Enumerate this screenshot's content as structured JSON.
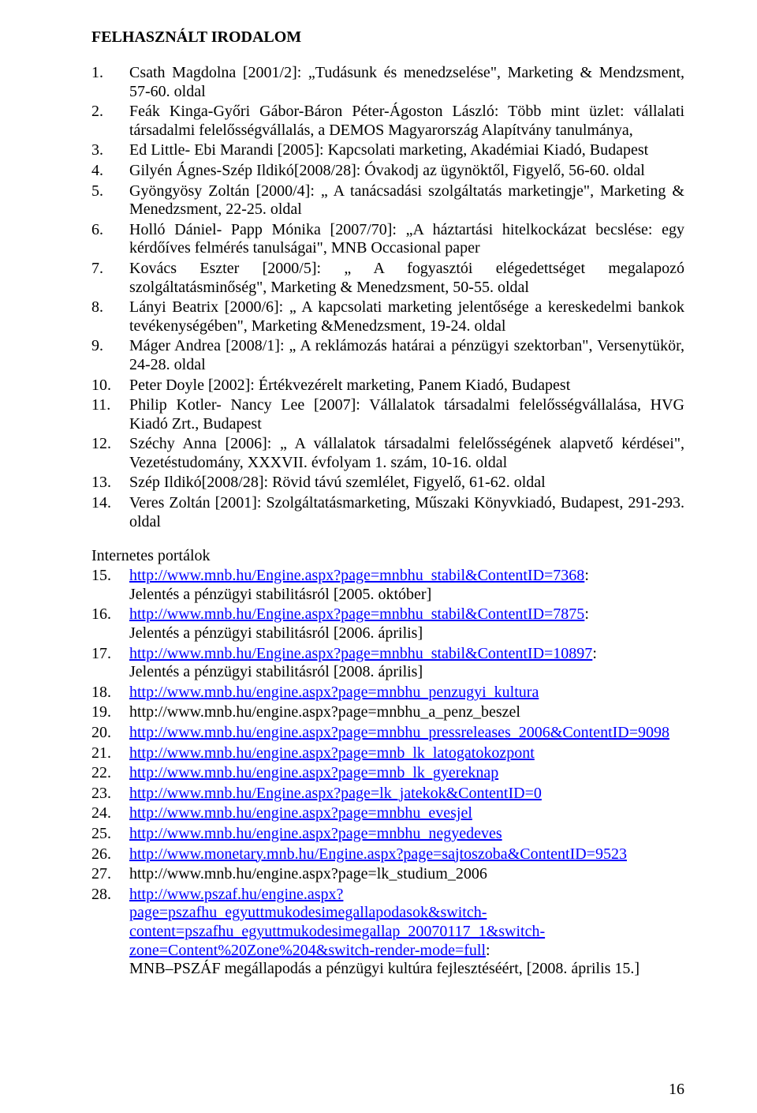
{
  "heading": "FELHASZNÁLT IRODALOM",
  "biblio": [
    {
      "n": "1.",
      "text": "Csath Magdolna [2001/2]: „Tudásunk és menedzselése\", Marketing & Mendzsment, 57-60. oldal"
    },
    {
      "n": "2.",
      "text": "Feák Kinga-Győri Gábor-Báron Péter-Ágoston László: Több mint üzlet: vállalati társadalmi felelősségvállalás, a DEMOS Magyarország Alapítvány tanulmánya,"
    },
    {
      "n": "3.",
      "text": "Ed Little- Ebi Marandi [2005]: Kapcsolati marketing, Akadémiai Kiadó, Budapest"
    },
    {
      "n": "4.",
      "text": "Gilyén Ágnes-Szép Ildikó[2008/28]: Óvakodj az ügynöktől, Figyelő, 56-60. oldal"
    },
    {
      "n": "5.",
      "text": "Gyöngyösy Zoltán [2000/4]: „ A tanácsadási szolgáltatás marketingje\", Marketing & Menedzsment, 22-25. oldal"
    },
    {
      "n": "6.",
      "text": "Holló Dániel- Papp Mónika [2007/70]: „A háztartási hitelkockázat becslése: egy kérdőíves felmérés tanulságai\",  MNB Occasional paper"
    },
    {
      "n": "7.",
      "text": "Kovács Eszter [2000/5]: „ A fogyasztói elégedettséget megalapozó szolgáltatásminőség\", Marketing & Menedzsment, 50-55. oldal"
    },
    {
      "n": "8.",
      "text": "Lányi Beatrix [2000/6]: „ A kapcsolati marketing jelentősége a kereskedelmi bankok tevékenységében\", Marketing &Menedzsment, 19-24. oldal"
    },
    {
      "n": "9.",
      "text": "Máger Andrea [2008/1]: „ A reklámozás határai a pénzügyi szektorban\", Versenytükör, 24-28. oldal"
    },
    {
      "n": "10.",
      "text": "Peter Doyle [2002]: Értékvezérelt marketing, Panem Kiadó, Budapest"
    },
    {
      "n": "11.",
      "text": "Philip Kotler- Nancy Lee [2007]: Vállalatok társadalmi felelősségvállalása, HVG Kiadó Zrt., Budapest"
    },
    {
      "n": "12.",
      "text": "Széchy Anna [2006]: „ A vállalatok társadalmi felelősségének alapvető kérdései\", Vezetéstudomány, XXXVII. évfolyam 1. szám, 10-16. oldal"
    },
    {
      "n": "13.",
      "text": "Szép Ildikó[2008/28]: Rövid távú szemlélet, Figyelő, 61-62. oldal"
    },
    {
      "n": "14.",
      "text": "Veres Zoltán [2001]: Szolgáltatásmarketing, Műszaki Könyvkiadó, Budapest, 291-293. oldal"
    }
  ],
  "subheading": "Internetes portálok",
  "links": [
    {
      "n": "15.",
      "url": "http://www.mnb.hu/Engine.aspx?page=mnbhu_stabil&ContentID=7368",
      "after": ":",
      "sub": "Jelentés a pénzügyi stabilitásról [2005. október]"
    },
    {
      "n": "16.",
      "url": "http://www.mnb.hu/Engine.aspx?page=mnbhu_stabil&ContentID=7875",
      "after": ":",
      "sub": "Jelentés a pénzügyi stabilitásról [2006. április]"
    },
    {
      "n": "17.",
      "url": "http://www.mnb.hu/Engine.aspx?page=mnbhu_stabil&ContentID=10897",
      "after": ":",
      "sub": "Jelentés a pénzügyi stabilitásról [2008. április]"
    },
    {
      "n": "18.",
      "url": "http://www.mnb.hu/engine.aspx?page=mnbhu_penzugyi_kultura",
      "after": "",
      "sub": ""
    },
    {
      "n": "19.",
      "url": "http://www.mnb.hu/engine.aspx?page=mnbhu_a_penz_beszel",
      "after": "",
      "sub": "",
      "plain": true
    },
    {
      "n": "20.",
      "url": "http://www.mnb.hu/engine.aspx?page=mnbhu_pressreleases_2006&ContentID=9098",
      "after": "",
      "sub": ""
    },
    {
      "n": "21.",
      "url": "http://www.mnb.hu/engine.aspx?page=mnb_lk_latogatokozpont",
      "after": "",
      "sub": ""
    },
    {
      "n": "22.",
      "url": "http://www.mnb.hu/engine.aspx?page=mnb_lk_gyereknap",
      "after": "",
      "sub": ""
    },
    {
      "n": "23.",
      "url": "http://www.mnb.hu/Engine.aspx?page=lk_jatekok&ContentID=0",
      "after": "",
      "sub": ""
    },
    {
      "n": "24.",
      "url": "http://www.mnb.hu/engine.aspx?page=mnbhu_evesjel",
      "after": "",
      "sub": ""
    },
    {
      "n": "25.",
      "url": "http://www.mnb.hu/engine.aspx?page=mnbhu_negyedeves",
      "after": "",
      "sub": ""
    },
    {
      "n": "26.",
      "url": "http://www.monetary.mnb.hu/Engine.aspx?page=sajtoszoba&ContentID=9523",
      "after": "",
      "sub": ""
    },
    {
      "n": "27.",
      "url": "http://www.mnb.hu/engine.aspx?page=lk_studium_2006",
      "after": "",
      "sub": "",
      "plain": true
    },
    {
      "n": "28.",
      "url": "http://www.pszaf.hu/engine.aspx?page=pszafhu_egyuttmukodesimegallapodasok&switch-content=pszafhu_egyuttmukodesimegallap_20070117_1&switch-zone=Content%20Zone%204&switch-render-mode=full",
      "after": ":",
      "sub": "MNB–PSZÁF megállapodás a pénzügyi kultúra fejlesztéséért, [2008. április 15.]"
    }
  ],
  "link_color": "#0000ff",
  "text_color": "#000000",
  "bg_color": "#ffffff",
  "pagenum": "16"
}
